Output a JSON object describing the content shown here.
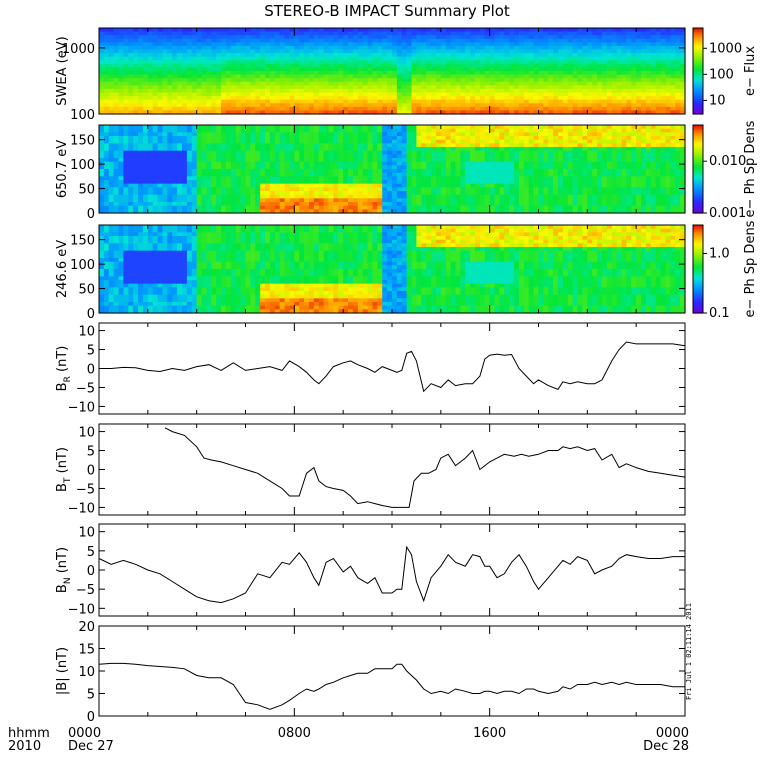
{
  "title": "STEREO-B IMPACT Summary Plot",
  "colors": {
    "line": "#000000",
    "background": "#ffffff"
  },
  "time_axis": {
    "corner_top": "hhmm",
    "corner_bottom": "2010",
    "ticks": [
      {
        "hour": 0,
        "label": "0000",
        "date": "Dec 27"
      },
      {
        "hour": 8,
        "label": "0800",
        "date": ""
      },
      {
        "hour": 16,
        "label": "1600",
        "date": ""
      },
      {
        "hour": 24,
        "label": "0000",
        "date": "Dec 28"
      }
    ]
  },
  "stamp": "Fri Jul 1 02:11:14 2011",
  "chart_data": [
    {
      "type": "heatmap",
      "ylabel": "SWEA (eV)",
      "yscale": "log",
      "ylim": [
        100,
        2000
      ],
      "yticks": [
        {
          "v": 100,
          "t": "100"
        },
        {
          "v": 1000,
          "t": "1000"
        }
      ],
      "colorbar_label": "e− Flux",
      "colorbar_scale": "log",
      "colorbar_range": [
        3,
        6000
      ],
      "colorbar_ticks": [
        {
          "v": 10,
          "t": "10"
        },
        {
          "v": 100,
          "t": "100"
        },
        {
          "v": 1000,
          "t": "1000"
        }
      ],
      "xlim": [
        0,
        24
      ]
    },
    {
      "type": "heatmap",
      "ylabel": "650.7 eV",
      "ylim": [
        0,
        180
      ],
      "yticks": [
        {
          "v": 0,
          "t": "0"
        },
        {
          "v": 50,
          "t": "50"
        },
        {
          "v": 100,
          "t": "100"
        },
        {
          "v": 150,
          "t": "150"
        }
      ],
      "colorbar_label": "e− Ph Sp Dens",
      "colorbar_scale": "log",
      "colorbar_range": [
        0.001,
        0.05
      ],
      "colorbar_ticks": [
        {
          "v": 0.001,
          "t": "0.001"
        },
        {
          "v": 0.01,
          "t": "0.010"
        }
      ],
      "xlim": [
        0,
        24
      ]
    },
    {
      "type": "heatmap",
      "ylabel": "246.6 eV",
      "ylim": [
        0,
        180
      ],
      "yticks": [
        {
          "v": 0,
          "t": "0"
        },
        {
          "v": 50,
          "t": "50"
        },
        {
          "v": 100,
          "t": "100"
        },
        {
          "v": 150,
          "t": "150"
        }
      ],
      "colorbar_label": "e− Ph Sp Dens",
      "colorbar_scale": "log",
      "colorbar_range": [
        0.1,
        3
      ],
      "colorbar_ticks": [
        {
          "v": 0.1,
          "t": "0.1"
        },
        {
          "v": 1.0,
          "t": "1.0"
        }
      ],
      "xlim": [
        0,
        24
      ]
    },
    {
      "type": "line",
      "ylabel": "B",
      "ysub": "R",
      "yunit": " (nT)",
      "ylim": [
        -12,
        12
      ],
      "yticks": [
        {
          "v": -10,
          "t": "−10"
        },
        {
          "v": -5,
          "t": "−5"
        },
        {
          "v": 0,
          "t": "0"
        },
        {
          "v": 5,
          "t": "5"
        },
        {
          "v": 10,
          "t": "10"
        }
      ],
      "xlim": [
        0,
        24
      ],
      "x": [
        0,
        0.5,
        1,
        1.5,
        2,
        2.5,
        3,
        3.5,
        4,
        4.5,
        5,
        5.5,
        6,
        6.5,
        7,
        7.5,
        7.8,
        8.2,
        8.5,
        8.8,
        9,
        9.3,
        9.6,
        10,
        10.3,
        10.6,
        11,
        11.3,
        11.6,
        12,
        12.2,
        12.4,
        12.6,
        12.8,
        13,
        13.3,
        13.6,
        14,
        14.3,
        14.6,
        15,
        15.3,
        15.6,
        15.8,
        16,
        16.3,
        16.6,
        16.9,
        17.2,
        17.5,
        17.8,
        18,
        18.4,
        18.8,
        19,
        19.3,
        19.6,
        20,
        20.3,
        20.6,
        21,
        21.3,
        21.6,
        22,
        22.5,
        23,
        23.5,
        24
      ],
      "y": [
        0,
        0,
        0.3,
        0.2,
        -0.5,
        -0.8,
        0,
        -0.5,
        0.5,
        1,
        -0.5,
        1.5,
        -0.5,
        0,
        0.5,
        -0.5,
        2,
        0.5,
        -1,
        -3,
        -4,
        -2,
        0.5,
        1.5,
        2,
        1,
        0,
        -1,
        0.5,
        -0.5,
        -1,
        -0.5,
        4,
        4.5,
        2,
        -6,
        -4,
        -5,
        -3,
        -4.5,
        -4,
        -4,
        -2,
        2.5,
        3.5,
        3.8,
        3.5,
        3.7,
        0,
        -2,
        -4,
        -3,
        -4.5,
        -5.5,
        -3.5,
        -4,
        -3.5,
        -4,
        -4,
        -3,
        2,
        5,
        7,
        6.5,
        6.5,
        6.5,
        6.5,
        6
      ]
    },
    {
      "type": "line",
      "ylabel": "B",
      "ysub": "T",
      "yunit": " (nT)",
      "ylim": [
        -12,
        12
      ],
      "yticks": [
        {
          "v": -10,
          "t": "−10"
        },
        {
          "v": -5,
          "t": "−5"
        },
        {
          "v": 0,
          "t": "0"
        },
        {
          "v": 5,
          "t": "5"
        },
        {
          "v": 10,
          "t": "10"
        }
      ],
      "xlim": [
        0,
        24
      ],
      "x": [
        2.7,
        3,
        3.5,
        4,
        4.3,
        4.6,
        5,
        5.5,
        6,
        6.5,
        7,
        7.5,
        7.8,
        8.2,
        8.5,
        8.8,
        9,
        9.3,
        9.6,
        10,
        10.3,
        10.6,
        11,
        11.3,
        11.6,
        12,
        12.2,
        12.5,
        12.7,
        12.9,
        13.2,
        13.5,
        13.8,
        14,
        14.3,
        14.6,
        15,
        15.3,
        15.6,
        16,
        16.3,
        16.6,
        17,
        17.3,
        17.6,
        18,
        18.4,
        18.8,
        19,
        19.3,
        19.6,
        20,
        20.3,
        20.6,
        21,
        21.3,
        21.6,
        22,
        22.5,
        23,
        23.5,
        24
      ],
      "y": [
        11,
        10,
        9,
        6,
        3,
        2.5,
        2,
        1,
        0,
        -1,
        -3,
        -5,
        -7,
        -7,
        -1,
        0.5,
        -3,
        -4.5,
        -5,
        -5.5,
        -7,
        -9,
        -8.5,
        -9,
        -9.5,
        -10,
        -10,
        -10,
        -10,
        -3,
        -1,
        -1,
        0,
        3,
        4,
        1,
        3,
        5,
        0,
        2,
        3,
        4,
        3.5,
        4,
        3.5,
        4,
        5,
        5,
        6,
        5.5,
        6,
        5,
        5.5,
        2.5,
        4,
        0.5,
        1.5,
        0.5,
        -0.5,
        -1,
        -1.5,
        -2
      ]
    },
    {
      "type": "line",
      "ylabel": "B",
      "ysub": "N",
      "yunit": " (nT)",
      "ylim": [
        -12,
        12
      ],
      "yticks": [
        {
          "v": -10,
          "t": "−10"
        },
        {
          "v": -5,
          "t": "−5"
        },
        {
          "v": 0,
          "t": "0"
        },
        {
          "v": 5,
          "t": "5"
        },
        {
          "v": 10,
          "t": "10"
        }
      ],
      "xlim": [
        0,
        24
      ],
      "x": [
        0,
        0.5,
        1,
        1.5,
        2,
        2.5,
        3,
        3.5,
        4,
        4.5,
        5,
        5.5,
        6,
        6.5,
        7,
        7.5,
        7.8,
        8.2,
        8.5,
        8.8,
        9,
        9.3,
        9.6,
        10,
        10.3,
        10.6,
        11,
        11.3,
        11.6,
        12,
        12.2,
        12.4,
        12.6,
        12.8,
        13,
        13.3,
        13.6,
        14,
        14.3,
        14.6,
        15,
        15.3,
        15.6,
        15.8,
        16,
        16.3,
        16.6,
        16.9,
        17.2,
        17.5,
        17.8,
        18,
        18.4,
        18.8,
        19,
        19.3,
        19.6,
        20,
        20.3,
        20.6,
        21,
        21.3,
        21.6,
        22,
        22.5,
        23,
        23.5,
        24
      ],
      "y": [
        3,
        1.5,
        2.5,
        1.5,
        0,
        -1,
        -3,
        -5,
        -7,
        -8,
        -8.5,
        -7.5,
        -6,
        -1,
        -2,
        2,
        1.5,
        4.5,
        2,
        -2,
        -4,
        2,
        3,
        -0.5,
        1,
        -2,
        -3.5,
        -2,
        -6,
        -6,
        -5,
        -5,
        6,
        4,
        -3,
        -8,
        -2,
        1,
        4,
        2,
        1,
        4,
        3.5,
        1,
        1,
        -2,
        -1,
        2,
        4,
        1,
        -3,
        -5,
        -2,
        1,
        2.5,
        1.5,
        3.5,
        2.5,
        -1,
        0,
        1,
        3,
        4,
        3.5,
        3,
        3,
        3.5,
        3.5
      ]
    },
    {
      "type": "line",
      "ylabel": "|B|",
      "ysub": "",
      "yunit": " (nT)",
      "ylim": [
        0,
        20
      ],
      "yticks": [
        {
          "v": 0,
          "t": "0"
        },
        {
          "v": 5,
          "t": "5"
        },
        {
          "v": 10,
          "t": "10"
        },
        {
          "v": 15,
          "t": "15"
        },
        {
          "v": 20,
          "t": "20"
        }
      ],
      "xlim": [
        0,
        24
      ],
      "x": [
        0,
        0.5,
        1,
        1.5,
        2,
        2.5,
        3,
        3.5,
        4,
        4.5,
        5,
        5.5,
        6,
        6.5,
        7,
        7.5,
        7.8,
        8.2,
        8.5,
        8.8,
        9,
        9.3,
        9.6,
        10,
        10.3,
        10.6,
        11,
        11.3,
        11.6,
        12,
        12.2,
        12.4,
        12.6,
        12.8,
        13,
        13.3,
        13.6,
        14,
        14.3,
        14.6,
        15,
        15.3,
        15.6,
        15.8,
        16,
        16.3,
        16.6,
        16.9,
        17.2,
        17.5,
        17.8,
        18,
        18.4,
        18.8,
        19,
        19.3,
        19.6,
        20,
        20.3,
        20.6,
        21,
        21.3,
        21.6,
        22,
        22.5,
        23,
        23.5,
        24
      ],
      "y": [
        11.5,
        11.7,
        11.7,
        11.5,
        11.2,
        11,
        10.8,
        10.5,
        9,
        8.5,
        8.5,
        7,
        3,
        2.5,
        1.5,
        2.5,
        3.5,
        5,
        6,
        5.5,
        6,
        7,
        7.5,
        8.5,
        9,
        9.5,
        9.5,
        10.5,
        10.5,
        10.5,
        11.5,
        11.5,
        10,
        9,
        8,
        6,
        5,
        5.5,
        5,
        6,
        5.5,
        5,
        5,
        5.5,
        5.5,
        5,
        5.5,
        5.5,
        5,
        6,
        6,
        5.5,
        5,
        5.5,
        6.5,
        6,
        7,
        7,
        7.5,
        7,
        7.5,
        7,
        7.5,
        7,
        7,
        7,
        6.5,
        6.5
      ]
    }
  ]
}
